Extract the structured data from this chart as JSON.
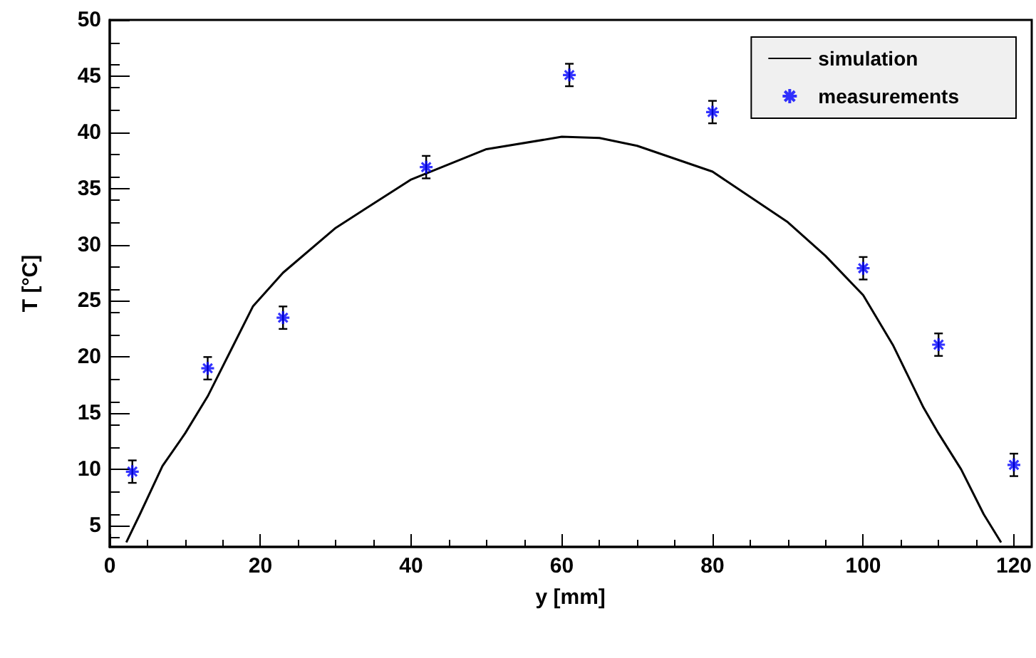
{
  "chart_data": {
    "type": "scatter",
    "xlabel": "y [mm]",
    "ylabel": "T [°C]",
    "xlim": [
      0,
      122.3
    ],
    "xticks": [
      0,
      20,
      40,
      60,
      80,
      100,
      120
    ],
    "ylim": [
      3.1,
      50
    ],
    "yticks": [
      5,
      10,
      15,
      20,
      25,
      30,
      35,
      40,
      45,
      50
    ],
    "grid": false,
    "legend": "top right",
    "series": [
      {
        "name": "simulation",
        "type": "line",
        "color": "#000000",
        "line_style": "solid",
        "marker": "none",
        "x": [
          2.2,
          4,
          7,
          10,
          13,
          16,
          19,
          23,
          30,
          40,
          50,
          60,
          65,
          70,
          80,
          90,
          95,
          100,
          104,
          108,
          110,
          113,
          116,
          118.3
        ],
        "values": [
          3.5,
          6,
          10.3,
          13.2,
          16.5,
          20.5,
          24.5,
          27.5,
          31.5,
          35.8,
          38.5,
          39.6,
          39.5,
          38.8,
          36.5,
          32,
          29,
          25.5,
          21,
          15.5,
          13.2,
          10,
          6,
          3.5
        ]
      },
      {
        "name": "measurements",
        "marker": "cross",
        "color": "#0000ff",
        "x": [
          3,
          13,
          23,
          42,
          61,
          80,
          100,
          110,
          120
        ],
        "values": [
          9.8,
          19,
          23.5,
          36.9,
          45.1,
          41.8,
          27.9,
          21.1,
          10.4
        ],
        "errors": [
          1,
          1,
          1,
          1,
          1,
          1,
          1,
          1,
          1
        ]
      }
    ]
  }
}
